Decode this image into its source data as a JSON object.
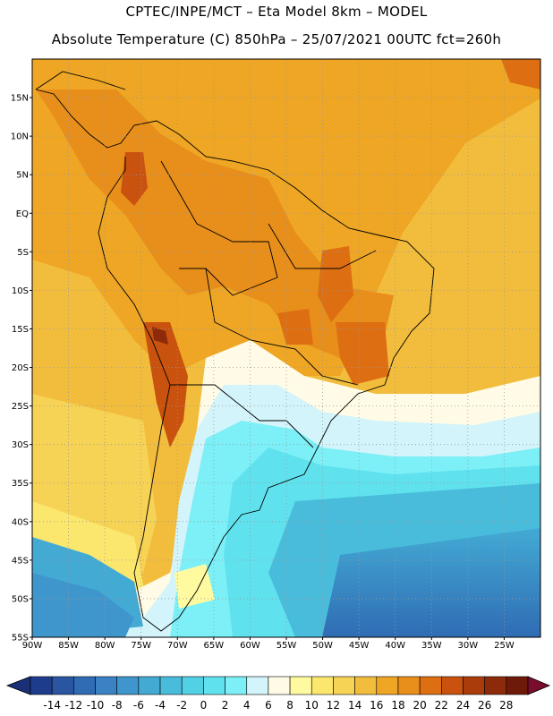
{
  "header": {
    "line1": "CPTEC/INPE/MCT –  Eta Model 8km – MODEL",
    "line2": "Absolute Temperature (C) 850hPa – 25/07/2021 00UTC fct=260h"
  },
  "map": {
    "lon_range": [
      -90,
      -20
    ],
    "lat_range": [
      -55,
      20
    ],
    "lat_ticks": [
      {
        "value": 15,
        "label": "15N"
      },
      {
        "value": 10,
        "label": "10N"
      },
      {
        "value": 5,
        "label": "5N"
      },
      {
        "value": 0,
        "label": "EQ"
      },
      {
        "value": -5,
        "label": "5S"
      },
      {
        "value": -10,
        "label": "10S"
      },
      {
        "value": -15,
        "label": "15S"
      },
      {
        "value": -20,
        "label": "20S"
      },
      {
        "value": -25,
        "label": "25S"
      },
      {
        "value": -30,
        "label": "30S"
      },
      {
        "value": -35,
        "label": "35S"
      },
      {
        "value": -40,
        "label": "40S"
      },
      {
        "value": -45,
        "label": "45S"
      },
      {
        "value": -50,
        "label": "50S"
      },
      {
        "value": -55,
        "label": "55S"
      }
    ],
    "lon_ticks": [
      {
        "value": -90,
        "label": "90W"
      },
      {
        "value": -85,
        "label": "85W"
      },
      {
        "value": -80,
        "label": "80W"
      },
      {
        "value": -75,
        "label": "75W"
      },
      {
        "value": -70,
        "label": "70W"
      },
      {
        "value": -65,
        "label": "65W"
      },
      {
        "value": -60,
        "label": "60W"
      },
      {
        "value": -55,
        "label": "55W"
      },
      {
        "value": -50,
        "label": "50W"
      },
      {
        "value": -45,
        "label": "45W"
      },
      {
        "value": -40,
        "label": "40W"
      },
      {
        "value": -35,
        "label": "35W"
      },
      {
        "value": -30,
        "label": "30W"
      },
      {
        "value": -25,
        "label": "25W"
      }
    ]
  },
  "colorbar": {
    "labels": [
      "-14",
      "-12",
      "-10",
      "-8",
      "-6",
      "-4",
      "-2",
      "0",
      "2",
      "4",
      "6",
      "8",
      "10",
      "12",
      "14",
      "16",
      "18",
      "20",
      "22",
      "24",
      "26",
      "28"
    ],
    "colors": [
      "#1e3c8c",
      "#2a55a0",
      "#2f6cb4",
      "#3a82c4",
      "#3f96cc",
      "#43aad4",
      "#49bcdc",
      "#52d0e4",
      "#5fe2ee",
      "#7cf0f6",
      "#d2f4fa",
      "#fffbe6",
      "#fffaa0",
      "#fbe76e",
      "#f6d255",
      "#f2bd3c",
      "#eea624",
      "#e88e1a",
      "#dd6e12",
      "#c8520e",
      "#aa3c0c",
      "#8c2a0a",
      "#6e1a08"
    ],
    "under_color": "#1a2f78",
    "over_color": "#7a0c2c"
  }
}
